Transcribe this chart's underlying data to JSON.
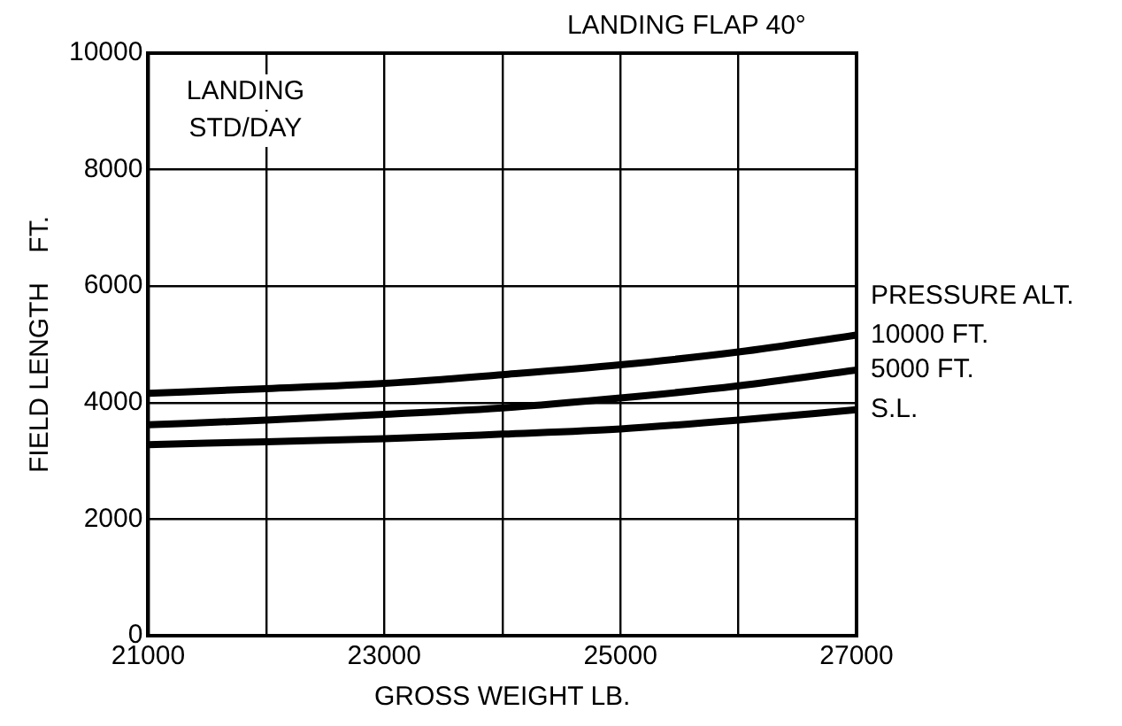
{
  "chart_data": {
    "type": "line",
    "title": "LANDING FLAP 40°",
    "xlabel": "GROSS WEIGHT LB.",
    "ylabel": "FIELD LENGTH    FT.",
    "legend_title": "PRESSURE ALT.",
    "annotations": [
      "LANDING\nSTD/DAY"
    ],
    "x": [
      21000,
      22000,
      23000,
      24000,
      25000,
      26000,
      27000
    ],
    "series": [
      {
        "name": "10000 FT.",
        "color": "#000000",
        "values": [
          4160,
          4240,
          4330,
          4480,
          4650,
          4870,
          5160
        ]
      },
      {
        "name": "5000 FT.",
        "color": "#000000",
        "values": [
          3620,
          3700,
          3800,
          3910,
          4080,
          4290,
          4560
        ]
      },
      {
        "name": "S.L.",
        "color": "#000000",
        "values": [
          3280,
          3330,
          3380,
          3460,
          3550,
          3700,
          3880
        ]
      }
    ],
    "xlim": [
      21000,
      27000
    ],
    "xticks": [
      21000,
      {
        "value": 22000,
        "label": null
      },
      23000,
      {
        "value": 24000,
        "label": null
      },
      25000,
      {
        "value": 26000,
        "label": null
      },
      27000
    ],
    "ylim": [
      0,
      10000
    ],
    "yticks": [
      0,
      2000,
      4000,
      6000,
      8000,
      10000
    ],
    "grid": true,
    "legend": false,
    "marker": "none",
    "line_style": "solid"
  }
}
